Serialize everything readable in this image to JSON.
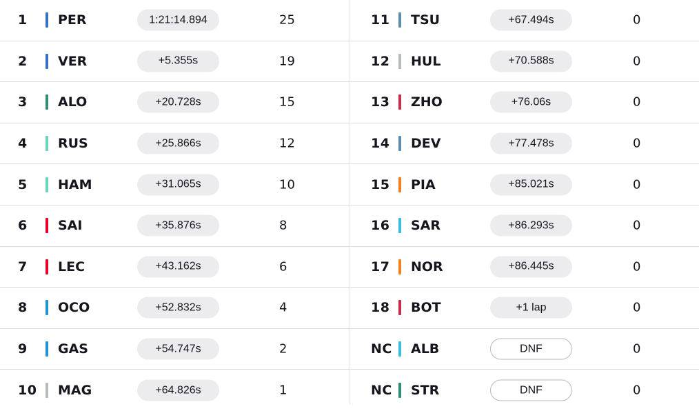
{
  "results_left": [
    {
      "pos": "1",
      "code": "PER",
      "time": "1:21:14.894",
      "points": "25",
      "color": "#3671c6",
      "outline": false
    },
    {
      "pos": "2",
      "code": "VER",
      "time": "+5.355s",
      "points": "19",
      "color": "#3671c6",
      "outline": false
    },
    {
      "pos": "3",
      "code": "ALO",
      "time": "+20.728s",
      "points": "15",
      "color": "#358c75",
      "outline": false
    },
    {
      "pos": "4",
      "code": "RUS",
      "time": "+25.866s",
      "points": "12",
      "color": "#6cd3bf",
      "outline": false
    },
    {
      "pos": "5",
      "code": "HAM",
      "time": "+31.065s",
      "points": "10",
      "color": "#6cd3bf",
      "outline": false
    },
    {
      "pos": "6",
      "code": "SAI",
      "time": "+35.876s",
      "points": "8",
      "color": "#e8002d",
      "outline": false
    },
    {
      "pos": "7",
      "code": "LEC",
      "time": "+43.162s",
      "points": "6",
      "color": "#e8002d",
      "outline": false
    },
    {
      "pos": "8",
      "code": "OCO",
      "time": "+52.832s",
      "points": "4",
      "color": "#2293d1",
      "outline": false
    },
    {
      "pos": "9",
      "code": "GAS",
      "time": "+54.747s",
      "points": "2",
      "color": "#2293d1",
      "outline": false
    },
    {
      "pos": "10",
      "code": "MAG",
      "time": "+64.826s",
      "points": "1",
      "color": "#b6babd",
      "outline": false
    }
  ],
  "results_right": [
    {
      "pos": "11",
      "code": "TSU",
      "time": "+67.494s",
      "points": "0",
      "color": "#5e8faa",
      "outline": false
    },
    {
      "pos": "12",
      "code": "HUL",
      "time": "+70.588s",
      "points": "0",
      "color": "#b6babd",
      "outline": false
    },
    {
      "pos": "13",
      "code": "ZHO",
      "time": "+76.06s",
      "points": "0",
      "color": "#c92d4b",
      "outline": false
    },
    {
      "pos": "14",
      "code": "DEV",
      "time": "+77.478s",
      "points": "0",
      "color": "#5e8faa",
      "outline": false
    },
    {
      "pos": "15",
      "code": "PIA",
      "time": "+85.021s",
      "points": "0",
      "color": "#f58020",
      "outline": false
    },
    {
      "pos": "16",
      "code": "SAR",
      "time": "+86.293s",
      "points": "0",
      "color": "#37bedd",
      "outline": false
    },
    {
      "pos": "17",
      "code": "NOR",
      "time": "+86.445s",
      "points": "0",
      "color": "#f58020",
      "outline": false
    },
    {
      "pos": "18",
      "code": "BOT",
      "time": "+1 lap",
      "points": "0",
      "color": "#c92d4b",
      "outline": false
    },
    {
      "pos": "NC",
      "code": "ALB",
      "time": "DNF",
      "points": "0",
      "color": "#37bedd",
      "outline": true
    },
    {
      "pos": "NC",
      "code": "STR",
      "time": "DNF",
      "points": "0",
      "color": "#358c75",
      "outline": true
    }
  ]
}
